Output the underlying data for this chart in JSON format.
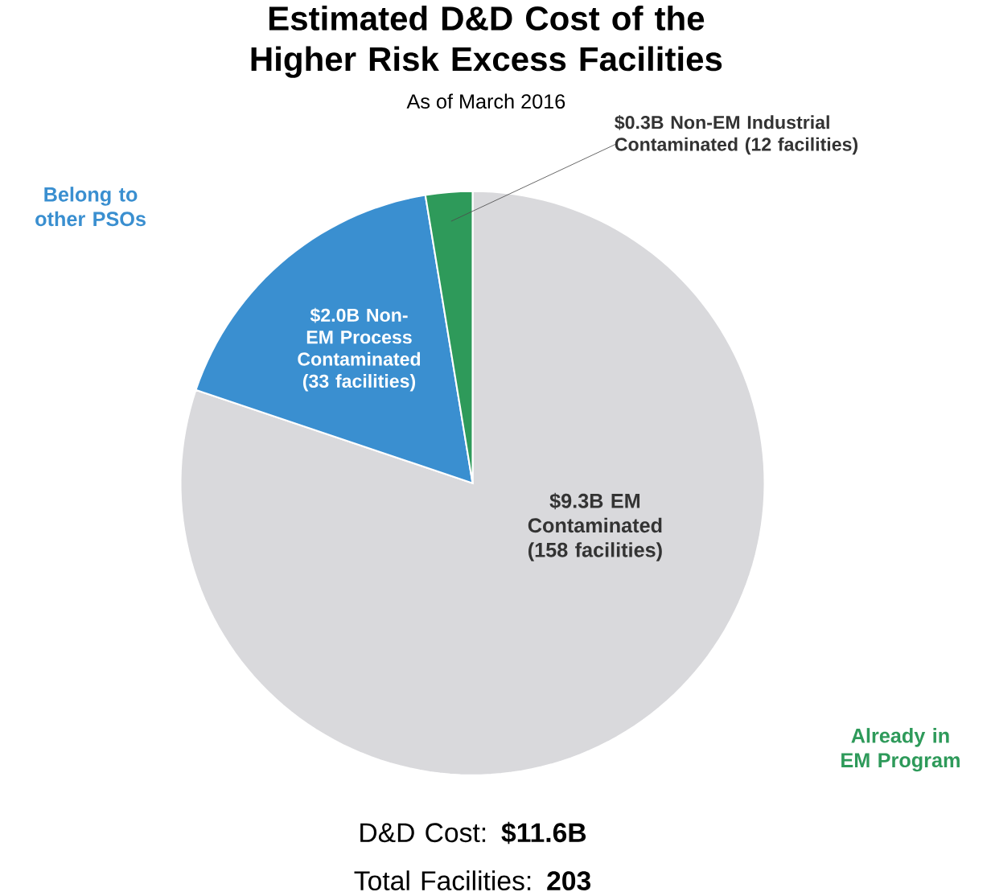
{
  "chart_data": {
    "type": "pie",
    "title": "Estimated D&D Cost of the Higher Risk Excess Facilities",
    "subtitle": "As of March 2016",
    "categories": [
      "EM Contaminated (158 facilities)",
      "Non-EM Process Contaminated (33 facilities)",
      "Non-EM Industrial Contaminated (12 facilities)"
    ],
    "values": [
      9.3,
      2.0,
      0.3
    ],
    "value_labels": [
      "$9.3B",
      "$2.0B",
      "$0.3B"
    ],
    "colors": [
      "#d9d9dc",
      "#3a8fd0",
      "#2e9a5a"
    ],
    "annotations": [
      "Belong to other PSOs",
      "Already in EM Program",
      "D&D Cost: **$11.6B**",
      "Total Facilities: **203**"
    ]
  }
}
